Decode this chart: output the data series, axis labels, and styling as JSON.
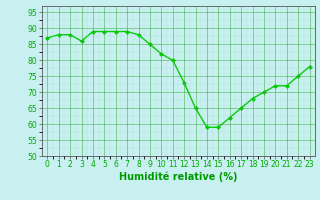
{
  "x": [
    0,
    1,
    2,
    3,
    4,
    5,
    6,
    7,
    8,
    9,
    10,
    11,
    12,
    13,
    14,
    15,
    16,
    17,
    18,
    19,
    20,
    21,
    22,
    23
  ],
  "y": [
    87,
    88,
    88,
    86,
    89,
    89,
    89,
    89,
    88,
    85,
    82,
    80,
    73,
    65,
    59,
    59,
    62,
    65,
    68,
    70,
    72,
    72,
    75,
    78
  ],
  "line_color": "#00CC00",
  "marker": "D",
  "marker_size": 2.0,
  "background_color": "#C8F0F0",
  "grid_color_major": "#33AA33",
  "grid_color_minor": "#99DDCC",
  "xlabel": "Humidité relative (%)",
  "xlabel_color": "#009900",
  "ylim": [
    50,
    97
  ],
  "xlim": [
    -0.5,
    23.5
  ],
  "yticks": [
    50,
    55,
    60,
    65,
    70,
    75,
    80,
    85,
    90,
    95
  ],
  "xticks": [
    0,
    1,
    2,
    3,
    4,
    5,
    6,
    7,
    8,
    9,
    10,
    11,
    12,
    13,
    14,
    15,
    16,
    17,
    18,
    19,
    20,
    21,
    22,
    23
  ],
  "tick_color": "#00AA00",
  "axis_color": "#555555",
  "line_width": 1.0
}
